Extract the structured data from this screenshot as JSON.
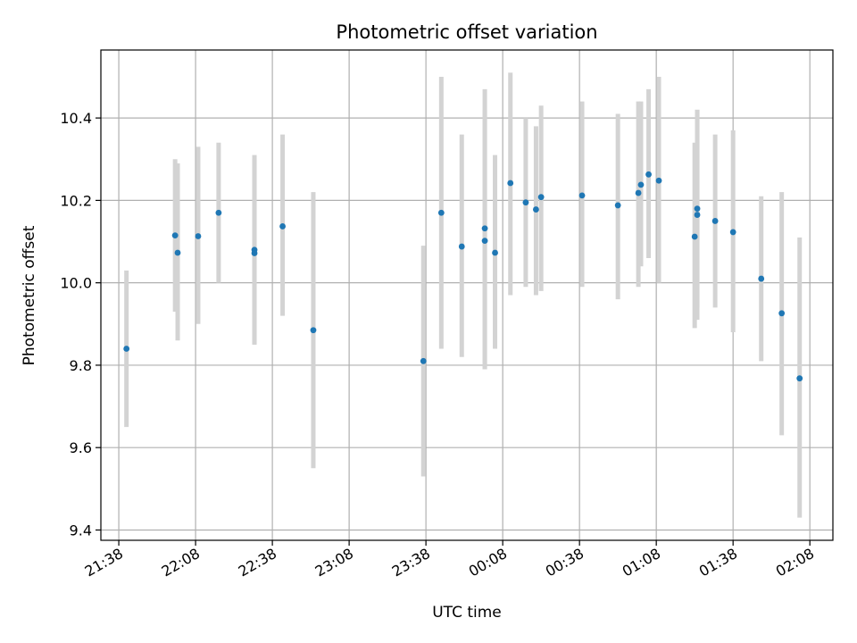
{
  "chart_data": {
    "type": "scatter",
    "title": "Photometric offset variation",
    "xlabel": "UTC time",
    "ylabel": "Photometric offset",
    "xlim": [
      "21:31",
      "02:17"
    ],
    "ylim": [
      9.375,
      10.565
    ],
    "grid": true,
    "x_ticks": [
      "21:38",
      "22:08",
      "22:38",
      "23:08",
      "23:38",
      "00:08",
      "00:38",
      "01:08",
      "01:38",
      "02:08"
    ],
    "y_ticks": [
      "9.4",
      "9.6",
      "9.8",
      "10.0",
      "10.2",
      "10.4"
    ],
    "colors": {
      "point": "#1f77b4",
      "errorbar": "#d3d3d3",
      "grid": "#b0b0b0"
    },
    "series": [
      {
        "points": [
          {
            "x": "21:41",
            "y": 9.84,
            "yerr": [
              9.65,
              10.03
            ]
          },
          {
            "x": "22:00",
            "y": 10.115,
            "yerr": [
              9.93,
              10.3
            ]
          },
          {
            "x": "22:01",
            "y": 10.073,
            "yerr": [
              9.86,
              10.29
            ]
          },
          {
            "x": "22:09",
            "y": 10.113,
            "yerr": [
              9.9,
              10.33
            ]
          },
          {
            "x": "22:17",
            "y": 10.17,
            "yerr": [
              10.0,
              10.34
            ]
          },
          {
            "x": "22:31",
            "y": 10.08,
            "yerr": [
              9.85,
              10.31
            ]
          },
          {
            "x": "22:31",
            "y": 10.072,
            "yerr": [
              9.85,
              10.3
            ]
          },
          {
            "x": "22:42",
            "y": 10.137,
            "yerr": [
              9.92,
              10.36
            ]
          },
          {
            "x": "22:54",
            "y": 9.885,
            "yerr": [
              9.55,
              10.22
            ]
          },
          {
            "x": "23:37",
            "y": 9.81,
            "yerr": [
              9.53,
              10.09
            ]
          },
          {
            "x": "23:44",
            "y": 10.17,
            "yerr": [
              9.84,
              10.5
            ]
          },
          {
            "x": "23:52",
            "y": 10.088,
            "yerr": [
              9.82,
              10.36
            ]
          },
          {
            "x": "00:01",
            "y": 10.132,
            "yerr": [
              9.79,
              10.47
            ]
          },
          {
            "x": "00:01",
            "y": 10.102,
            "yerr": [
              9.79,
              10.42
            ]
          },
          {
            "x": "00:05",
            "y": 10.073,
            "yerr": [
              9.84,
              10.31
            ]
          },
          {
            "x": "00:11",
            "y": 10.242,
            "yerr": [
              9.97,
              10.51
            ]
          },
          {
            "x": "00:17",
            "y": 10.195,
            "yerr": [
              9.99,
              10.4
            ]
          },
          {
            "x": "00:21",
            "y": 10.178,
            "yerr": [
              9.97,
              10.38
            ]
          },
          {
            "x": "00:23",
            "y": 10.208,
            "yerr": [
              9.98,
              10.43
            ]
          },
          {
            "x": "00:39",
            "y": 10.212,
            "yerr": [
              9.99,
              10.44
            ]
          },
          {
            "x": "00:53",
            "y": 10.188,
            "yerr": [
              9.96,
              10.41
            ]
          },
          {
            "x": "01:01",
            "y": 10.218,
            "yerr": [
              9.99,
              10.44
            ]
          },
          {
            "x": "01:02",
            "y": 10.238,
            "yerr": [
              10.04,
              10.44
            ]
          },
          {
            "x": "01:05",
            "y": 10.263,
            "yerr": [
              10.06,
              10.47
            ]
          },
          {
            "x": "01:09",
            "y": 10.248,
            "yerr": [
              10.0,
              10.5
            ]
          },
          {
            "x": "01:23",
            "y": 10.112,
            "yerr": [
              9.89,
              10.34
            ]
          },
          {
            "x": "01:24",
            "y": 10.18,
            "yerr": [
              9.94,
              10.42
            ]
          },
          {
            "x": "01:24",
            "y": 10.165,
            "yerr": [
              9.91,
              10.42
            ]
          },
          {
            "x": "01:31",
            "y": 10.15,
            "yerr": [
              9.94,
              10.36
            ]
          },
          {
            "x": "01:38",
            "y": 10.123,
            "yerr": [
              9.88,
              10.37
            ]
          },
          {
            "x": "01:49",
            "y": 10.01,
            "yerr": [
              9.81,
              10.21
            ]
          },
          {
            "x": "01:57",
            "y": 9.926,
            "yerr": [
              9.63,
              10.22
            ]
          },
          {
            "x": "02:04",
            "y": 9.768,
            "yerr": [
              9.43,
              10.11
            ]
          }
        ]
      }
    ]
  }
}
